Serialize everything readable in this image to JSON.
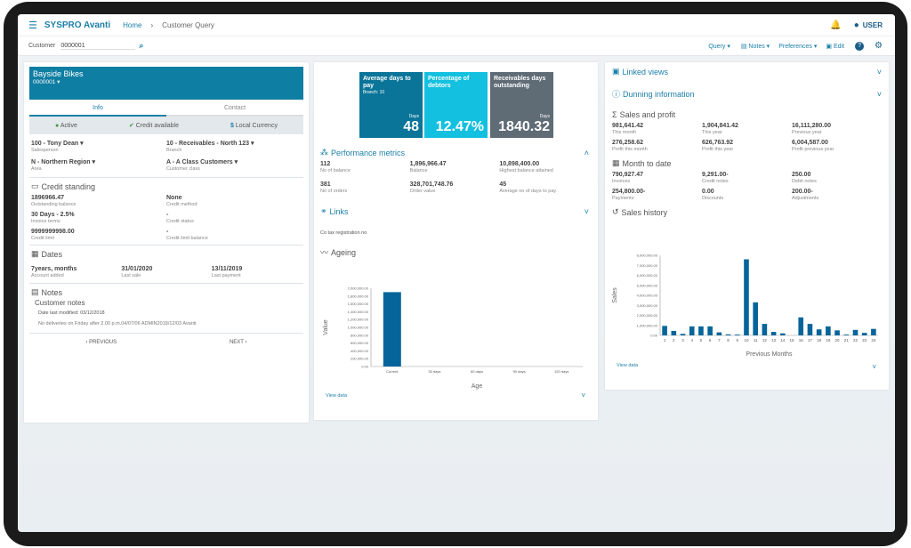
{
  "header": {
    "app": "SYSPRO Avanti",
    "breadcrumb": [
      "Home",
      "Customer Query"
    ],
    "user": "USER"
  },
  "toolbar": {
    "customer_label": "Customer",
    "customer_value": "0000001",
    "query": "Query",
    "notes": "Notes",
    "preferences": "Preferences",
    "edit": "Edit"
  },
  "customer": {
    "name": "Bayside Bikes",
    "code": "0000001",
    "tabs": [
      "Info",
      "Contact"
    ],
    "status": [
      "Active",
      "Credit available",
      "Local Currency"
    ],
    "fields": [
      {
        "v": "100 - Tony Dean",
        "l": "Salesperson"
      },
      {
        "v": "10 - Receivables - North 123",
        "l": "Branch"
      },
      {
        "v": "N - Northern Region",
        "l": "Area"
      },
      {
        "v": "A - A Class Customers",
        "l": "Customer class"
      }
    ],
    "credit_title": "Credit standing",
    "credit": [
      {
        "v": "1896966.47",
        "l": "Outstanding balance"
      },
      {
        "v": "None",
        "l": "Credit method"
      },
      {
        "v": "30 Days - 2.5%",
        "l": "Invoice terms"
      },
      {
        "v": "-",
        "l": "Credit status"
      },
      {
        "v": "9999999998.00",
        "l": "Credit limit"
      },
      {
        "v": "-",
        "l": "Credit limit balance"
      }
    ],
    "dates_title": "Dates",
    "dates": [
      {
        "v": "7years,  months",
        "l": "Account added"
      },
      {
        "v": "31/01/2020",
        "l": "Last sale"
      },
      {
        "v": "13/11/2019",
        "l": "Last payment"
      }
    ],
    "notes_title": "Notes",
    "notes_sub": "Customer notes",
    "notes_modified": "Date last modified: 03/12/2018",
    "notes_text": "No deliveries on Friday after 2.00 p.m.04/07/06 ADMIN2018/12/03 Avanti",
    "prev": "PREVIOUS",
    "next": "NEXT"
  },
  "tiles": [
    {
      "title": "Average days to pay",
      "sub": "Branch: 10",
      "unit": "Days",
      "value": "48",
      "color": "#0a7499"
    },
    {
      "title": "Percentage of debtors",
      "unit": "",
      "value": "12.47%",
      "color": "#14c0df"
    },
    {
      "title": "Receivables days outstanding",
      "unit": "Days",
      "value": "1840.32",
      "color": "#5f6b75"
    }
  ],
  "performance": {
    "title": "Performance metrics",
    "items": [
      {
        "v": "112",
        "l": "No of balance"
      },
      {
        "v": "1,896,966.47",
        "l": "Balance"
      },
      {
        "v": "10,898,400.00",
        "l": "Highest balance attained"
      },
      {
        "v": "381",
        "l": "No of orders"
      },
      {
        "v": "328,701,748.76",
        "l": "Order value"
      },
      {
        "v": "45",
        "l": "Average no of days to pay"
      }
    ]
  },
  "links": {
    "title": "Links",
    "item": "Co tax registration no"
  },
  "ageing_title": "Ageing",
  "view_data": "View data",
  "right": {
    "linked": "Linked views",
    "dunning": "Dunning information",
    "sales_title": "Sales and profit",
    "sales": [
      {
        "v": "981,641.42",
        "l": "This month"
      },
      {
        "v": "1,904,841.42",
        "l": "This year"
      },
      {
        "v": "16,111,280.00",
        "l": "Previous year"
      },
      {
        "v": "276,258.62",
        "l": "Profit this month"
      },
      {
        "v": "626,763.92",
        "l": "Profit this year"
      },
      {
        "v": "6,004,587.00",
        "l": "Profit previous year"
      }
    ],
    "mtd_title": "Month to date",
    "mtd": [
      {
        "v": "790,927.47",
        "l": "Invoices"
      },
      {
        "v": "9,291.00-",
        "l": "Credit notes"
      },
      {
        "v": "250.00",
        "l": "Debit notes"
      },
      {
        "v": "254,800.00-",
        "l": "Payments"
      },
      {
        "v": "0.00",
        "l": "Discounts"
      },
      {
        "v": "200.00-",
        "l": "Adjustments"
      }
    ],
    "history_title": "Sales history"
  },
  "chart_data": [
    {
      "type": "bar",
      "title": "Ageing",
      "xlabel": "Age",
      "ylabel": "Value",
      "categories": [
        "Current",
        "30 days",
        "60 days",
        "90 days",
        "120 days"
      ],
      "values": [
        1900000,
        0,
        0,
        0,
        0
      ],
      "ylim": [
        0,
        2000000
      ],
      "yticks": [
        "0.00",
        "200,000.00",
        "400,000.00",
        "600,000.00",
        "800,000.00",
        "1,000,000.00",
        "1,200,000.00",
        "1,400,000.00",
        "1,600,000.00",
        "1,800,000.00",
        "2,000,000.00"
      ],
      "color": "#05659a"
    },
    {
      "type": "bar",
      "title": "Sales history",
      "xlabel": "Previous Months",
      "ylabel": "Sales",
      "categories": [
        "1",
        "2",
        "3",
        "4",
        "5",
        "6",
        "7",
        "8",
        "9",
        "10",
        "11",
        "12",
        "13",
        "14",
        "15",
        "16",
        "17",
        "18",
        "19",
        "20",
        "21",
        "22",
        "23",
        "24"
      ],
      "values": [
        950000,
        450000,
        150000,
        900000,
        900000,
        900000,
        300000,
        100000,
        80000,
        7600000,
        3300000,
        1150000,
        350000,
        200000,
        0,
        1800000,
        1150000,
        600000,
        900000,
        500000,
        80000,
        550000,
        250000,
        650000
      ],
      "ylim": [
        0,
        8000000
      ],
      "yticks": [
        "0.00",
        "1,000,000.00",
        "2,000,000.00",
        "3,000,000.00",
        "4,000,000.00",
        "5,000,000.00",
        "6,000,000.00",
        "7,000,000.00",
        "8,000,000.00"
      ],
      "color": "#05659a"
    }
  ]
}
